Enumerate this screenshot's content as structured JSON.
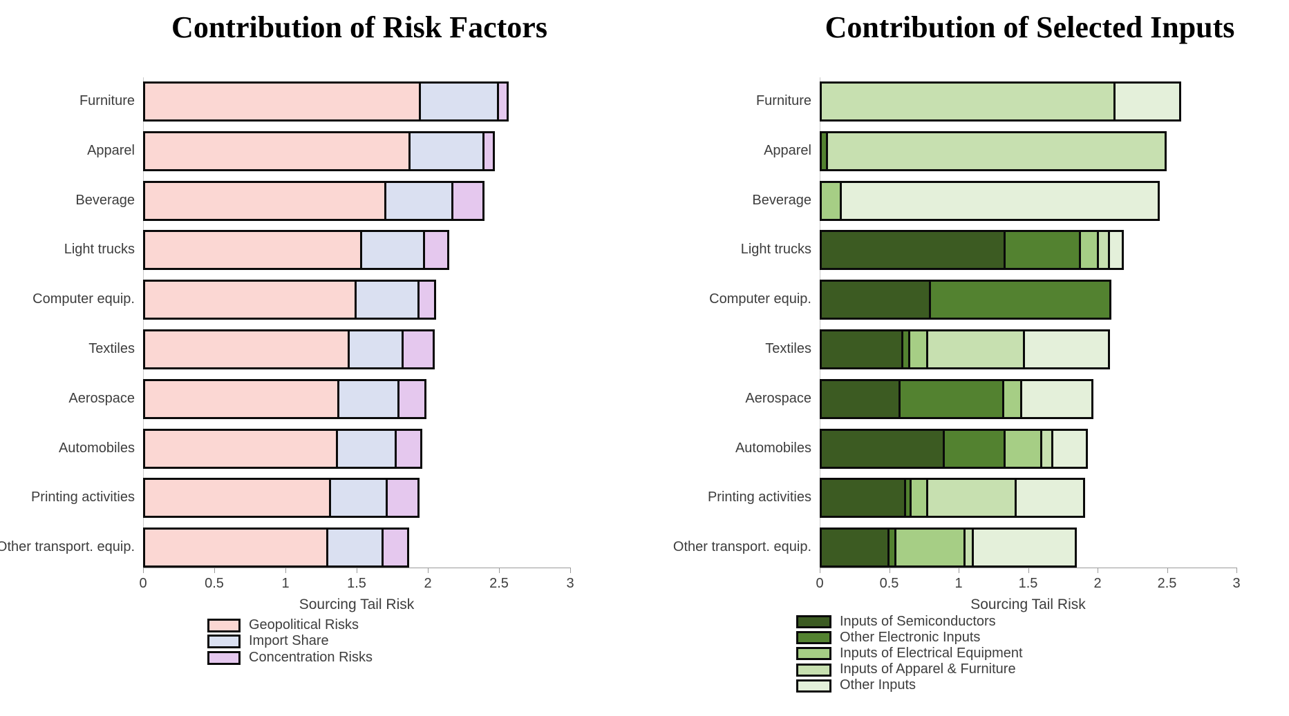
{
  "chart_data": [
    {
      "type": "bar",
      "orientation": "horizontal",
      "stacked": true,
      "title": "Contribution of Risk Factors",
      "xlabel": "Sourcing Tail Risk",
      "xlim": [
        0,
        3
      ],
      "x_ticks": [
        0,
        0.5,
        1,
        1.5,
        2,
        2.5,
        3
      ],
      "grid": false,
      "legend_position": "below-left",
      "categories": [
        "Furniture",
        "Apparel",
        "Beverage",
        "Light trucks",
        "Computer equip.",
        "Textiles",
        "Aerospace",
        "Automobiles",
        "Printing activities",
        "Other transport. equip."
      ],
      "series": [
        {
          "name": "Geopolitical Risks",
          "color": "#FBD7D3",
          "values": [
            1.95,
            1.88,
            1.71,
            1.54,
            1.5,
            1.45,
            1.38,
            1.37,
            1.32,
            1.3
          ]
        },
        {
          "name": "Import Share",
          "color": "#DAE0F1",
          "values": [
            0.55,
            0.52,
            0.47,
            0.44,
            0.44,
            0.38,
            0.42,
            0.41,
            0.4,
            0.39
          ]
        },
        {
          "name": "Concentration Risks",
          "color": "#E5C8EE",
          "values": [
            0.07,
            0.07,
            0.22,
            0.17,
            0.12,
            0.22,
            0.19,
            0.18,
            0.22,
            0.18
          ]
        }
      ]
    },
    {
      "type": "bar",
      "orientation": "horizontal",
      "stacked": true,
      "title": "Contribution of Selected Inputs",
      "xlabel": "Sourcing Tail Risk",
      "xlim": [
        0,
        3
      ],
      "x_ticks": [
        0,
        0.5,
        1,
        1.5,
        2,
        2.5,
        3
      ],
      "grid": false,
      "legend_position": "below-left",
      "categories": [
        "Furniture",
        "Apparel",
        "Beverage",
        "Light trucks",
        "Computer equip.",
        "Textiles",
        "Aerospace",
        "Automobiles",
        "Printing activities",
        "Other transport. equip."
      ],
      "series": [
        {
          "name": "Inputs of Semiconductors",
          "color": "#3C5B22",
          "values": [
            0,
            0,
            0,
            1.34,
            0.8,
            0.6,
            0.58,
            0.9,
            0.62,
            0.5
          ]
        },
        {
          "name": "Other Electronic Inputs",
          "color": "#538230",
          "values": [
            0,
            0.06,
            0,
            0.54,
            1.3,
            0.05,
            0.75,
            0.44,
            0.04,
            0.05
          ]
        },
        {
          "name": "Inputs of Electrical Equipment",
          "color": "#A6CE85",
          "values": [
            0,
            0,
            0.16,
            0.13,
            0,
            0.13,
            0.13,
            0.26,
            0.12,
            0.5
          ]
        },
        {
          "name": "Inputs of Apparel & Furniture",
          "color": "#C7E0B0",
          "values": [
            2.13,
            2.44,
            0,
            0.08,
            0,
            0.7,
            0,
            0.08,
            0.64,
            0.06
          ]
        },
        {
          "name": "Other Inputs",
          "color": "#E4F0DA",
          "values": [
            0.47,
            0,
            2.29,
            0.1,
            0,
            0.61,
            0.51,
            0.25,
            0.49,
            0.74
          ]
        }
      ]
    }
  ]
}
